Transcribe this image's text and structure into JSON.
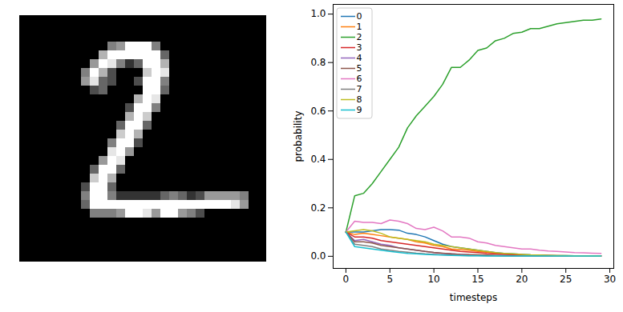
{
  "chart_data": [
    {
      "type": "image",
      "color": "gray",
      "clim": [
        0,
        1
      ],
      "tick_labels": false,
      "cells": [
        [
          0,
          0,
          0,
          0,
          0,
          0,
          0,
          0,
          0,
          0,
          0,
          0,
          0,
          0,
          0,
          0,
          0,
          0,
          0,
          0,
          0,
          0,
          0,
          0,
          0,
          0,
          0,
          0
        ],
        [
          0,
          0,
          0,
          0,
          0,
          0,
          0,
          0,
          0,
          0,
          0,
          0,
          0,
          0,
          0,
          0,
          0,
          0,
          0,
          0,
          0,
          0,
          0,
          0,
          0,
          0,
          0,
          0
        ],
        [
          0,
          0,
          0,
          0,
          0,
          0,
          0,
          0,
          0,
          0,
          0,
          0,
          0,
          0,
          0,
          0,
          0,
          0,
          0,
          0,
          0,
          0,
          0,
          0,
          0,
          0,
          0,
          0
        ],
        [
          0,
          0,
          0,
          0,
          0,
          0,
          0,
          0,
          0,
          0,
          0.5,
          0.6,
          1,
          1,
          1,
          0.5,
          0,
          0,
          0,
          0,
          0,
          0,
          0,
          0,
          0,
          0,
          0,
          0
        ],
        [
          0,
          0,
          0,
          0,
          0,
          0,
          0,
          0,
          0,
          0.7,
          1,
          1,
          1,
          1,
          1,
          1,
          0.4,
          0,
          0,
          0,
          0,
          0,
          0,
          0,
          0,
          0,
          0,
          0
        ],
        [
          0,
          0,
          0,
          0,
          0,
          0,
          0,
          0,
          0.6,
          1,
          0.9,
          0.5,
          0.2,
          0.4,
          1,
          1,
          0.7,
          0,
          0,
          0,
          0,
          0,
          0,
          0,
          0,
          0,
          0,
          0
        ],
        [
          0,
          0,
          0,
          0,
          0,
          0,
          0,
          0.5,
          1,
          0.7,
          0.3,
          0,
          0,
          0,
          0.8,
          1,
          0.9,
          0,
          0,
          0,
          0,
          0,
          0,
          0,
          0,
          0,
          0,
          0
        ],
        [
          0,
          0,
          0,
          0,
          0,
          0,
          0,
          0.6,
          0.9,
          0.4,
          0.3,
          0,
          0,
          0.3,
          1,
          1,
          0.5,
          0,
          0,
          0,
          0,
          0,
          0,
          0,
          0,
          0,
          0,
          0
        ],
        [
          0,
          0,
          0,
          0,
          0,
          0,
          0,
          0,
          0.3,
          0.4,
          0,
          0,
          0,
          0,
          1,
          1,
          0.4,
          0,
          0,
          0,
          0,
          0,
          0,
          0,
          0,
          0,
          0,
          0
        ],
        [
          0,
          0,
          0,
          0,
          0,
          0,
          0,
          0,
          0,
          0,
          0,
          0,
          0,
          0.7,
          1,
          0.9,
          0,
          0,
          0,
          0,
          0,
          0,
          0,
          0,
          0,
          0,
          0,
          0
        ],
        [
          0,
          0,
          0,
          0,
          0,
          0,
          0,
          0,
          0,
          0,
          0,
          0,
          0.3,
          1,
          1,
          0.5,
          0,
          0,
          0,
          0,
          0,
          0,
          0,
          0,
          0,
          0,
          0,
          0
        ],
        [
          0,
          0,
          0,
          0,
          0,
          0,
          0,
          0,
          0,
          0,
          0,
          0,
          0.7,
          1,
          0.8,
          0,
          0,
          0,
          0,
          0,
          0,
          0,
          0,
          0,
          0,
          0,
          0,
          0
        ],
        [
          0,
          0,
          0,
          0,
          0,
          0,
          0,
          0,
          0,
          0,
          0,
          0.4,
          1,
          1,
          0.4,
          0,
          0,
          0,
          0,
          0,
          0,
          0,
          0,
          0,
          0,
          0,
          0,
          0
        ],
        [
          0,
          0,
          0,
          0,
          0,
          0,
          0,
          0,
          0,
          0,
          0,
          0.8,
          1,
          0.7,
          0,
          0,
          0,
          0,
          0,
          0,
          0,
          0,
          0,
          0,
          0,
          0,
          0,
          0
        ],
        [
          0,
          0,
          0,
          0,
          0,
          0,
          0,
          0,
          0,
          0,
          0.5,
          1,
          1,
          0.3,
          0,
          0,
          0,
          0,
          0,
          0,
          0,
          0,
          0,
          0,
          0,
          0,
          0,
          0
        ],
        [
          0,
          0,
          0,
          0,
          0,
          0,
          0,
          0,
          0,
          0,
          0.9,
          1,
          0.6,
          0,
          0,
          0,
          0,
          0,
          0,
          0,
          0,
          0,
          0,
          0,
          0,
          0,
          0,
          0
        ],
        [
          0,
          0,
          0,
          0,
          0,
          0,
          0,
          0,
          0,
          0.6,
          1,
          0.9,
          0,
          0,
          0,
          0,
          0,
          0,
          0,
          0,
          0,
          0,
          0,
          0,
          0,
          0,
          0,
          0
        ],
        [
          0,
          0,
          0,
          0,
          0,
          0,
          0,
          0,
          0.4,
          1,
          1,
          0.4,
          0,
          0,
          0,
          0,
          0,
          0,
          0,
          0,
          0,
          0,
          0,
          0,
          0,
          0,
          0,
          0
        ],
        [
          0,
          0,
          0,
          0,
          0,
          0,
          0,
          0,
          0.8,
          1,
          0.7,
          0,
          0,
          0,
          0,
          0,
          0,
          0,
          0,
          0,
          0,
          0,
          0,
          0,
          0,
          0,
          0,
          0
        ],
        [
          0,
          0,
          0,
          0,
          0,
          0,
          0,
          0.3,
          1,
          1,
          0.4,
          0,
          0,
          0,
          0,
          0,
          0,
          0,
          0,
          0,
          0,
          0,
          0,
          0,
          0,
          0,
          0,
          0
        ],
        [
          0,
          0,
          0,
          0,
          0,
          0,
          0,
          0.5,
          1,
          1,
          0.5,
          0.2,
          0.2,
          0.2,
          0.2,
          0.2,
          0.4,
          0.5,
          0.4,
          0.2,
          0.3,
          0.6,
          0.6,
          0.6,
          0.6,
          0.5,
          0,
          0
        ],
        [
          0,
          0,
          0,
          0,
          0,
          0,
          0,
          0.4,
          1,
          1,
          1,
          1,
          1,
          1,
          1,
          1,
          1,
          1,
          1,
          1,
          1,
          1,
          1,
          1,
          0.9,
          0.6,
          0,
          0
        ],
        [
          0,
          0,
          0,
          0,
          0,
          0,
          0,
          0,
          0.5,
          0.5,
          0.5,
          0.6,
          1,
          1,
          0.9,
          0.6,
          1,
          1,
          0.6,
          0.5,
          0.3,
          0,
          0,
          0,
          0,
          0,
          0,
          0
        ],
        [
          0,
          0,
          0,
          0,
          0,
          0,
          0,
          0,
          0,
          0,
          0,
          0,
          0,
          0,
          0,
          0,
          0,
          0,
          0,
          0,
          0,
          0,
          0,
          0,
          0,
          0,
          0,
          0
        ],
        [
          0,
          0,
          0,
          0,
          0,
          0,
          0,
          0,
          0,
          0,
          0,
          0,
          0,
          0,
          0,
          0,
          0,
          0,
          0,
          0,
          0,
          0,
          0,
          0,
          0,
          0,
          0,
          0
        ],
        [
          0,
          0,
          0,
          0,
          0,
          0,
          0,
          0,
          0,
          0,
          0,
          0,
          0,
          0,
          0,
          0,
          0,
          0,
          0,
          0,
          0,
          0,
          0,
          0,
          0,
          0,
          0,
          0
        ],
        [
          0,
          0,
          0,
          0,
          0,
          0,
          0,
          0,
          0,
          0,
          0,
          0,
          0,
          0,
          0,
          0,
          0,
          0,
          0,
          0,
          0,
          0,
          0,
          0,
          0,
          0,
          0,
          0
        ],
        [
          0,
          0,
          0,
          0,
          0,
          0,
          0,
          0,
          0,
          0,
          0,
          0,
          0,
          0,
          0,
          0,
          0,
          0,
          0,
          0,
          0,
          0,
          0,
          0,
          0,
          0,
          0,
          0
        ]
      ]
    },
    {
      "type": "line",
      "x_label": "timesteps",
      "y_label": "probability",
      "legend": "upper left",
      "xlim": [
        -1.45,
        30.45
      ],
      "xticks": [
        0,
        5,
        10,
        15,
        20,
        25,
        30
      ],
      "ylim": [
        -0.05,
        1.04
      ],
      "yticks": [
        {
          "value": 0,
          "label": "0.0"
        },
        {
          "value": 0.2,
          "label": "0.2"
        },
        {
          "value": 0.4,
          "label": "0.4"
        },
        {
          "value": 0.6,
          "label": "0.6"
        },
        {
          "value": 0.8,
          "label": "0.8"
        },
        {
          "value": 1,
          "label": "1.0"
        }
      ],
      "x": [
        0,
        1,
        2,
        3,
        4,
        5,
        6,
        7,
        8,
        9,
        10,
        11,
        12,
        13,
        14,
        15,
        16,
        17,
        18,
        19,
        20,
        21,
        22,
        23,
        24,
        25,
        26,
        27,
        28,
        29
      ],
      "series": [
        {
          "name": "0",
          "color": "#1f77b4",
          "values": [
            0.1,
            0.1,
            0.1,
            0.105,
            0.11,
            0.11,
            0.108,
            0.095,
            0.09,
            0.08,
            0.065,
            0.05,
            0.04,
            0.035,
            0.03,
            0.025,
            0.02,
            0.015,
            0.012,
            0.01,
            0.008,
            0.006,
            0.005,
            0.004,
            0.003,
            0.003,
            0.002,
            0.002,
            0.002,
            0.002
          ]
        },
        {
          "name": "1",
          "color": "#ff7f0e",
          "values": [
            0.1,
            0.09,
            0.095,
            0.09,
            0.085,
            0.08,
            0.075,
            0.07,
            0.06,
            0.055,
            0.045,
            0.04,
            0.03,
            0.028,
            0.025,
            0.02,
            0.017,
            0.013,
            0.01,
            0.008,
            0.006,
            0.005,
            0.004,
            0.003,
            0.003,
            0.002,
            0.002,
            0.002,
            0.001,
            0.001
          ]
        },
        {
          "name": "2",
          "color": "#2ca02c",
          "values": [
            0.1,
            0.25,
            0.26,
            0.3,
            0.35,
            0.4,
            0.45,
            0.53,
            0.58,
            0.62,
            0.66,
            0.71,
            0.78,
            0.78,
            0.81,
            0.85,
            0.86,
            0.89,
            0.9,
            0.92,
            0.925,
            0.94,
            0.94,
            0.95,
            0.96,
            0.965,
            0.97,
            0.975,
            0.975,
            0.98
          ]
        },
        {
          "name": "3",
          "color": "#d62728",
          "values": [
            0.1,
            0.08,
            0.08,
            0.075,
            0.065,
            0.06,
            0.055,
            0.05,
            0.045,
            0.04,
            0.035,
            0.03,
            0.025,
            0.02,
            0.018,
            0.015,
            0.012,
            0.01,
            0.008,
            0.006,
            0.005,
            0.004,
            0.003,
            0.003,
            0.002,
            0.002,
            0.002,
            0.001,
            0.001,
            0.001
          ]
        },
        {
          "name": "4",
          "color": "#9467bd",
          "values": [
            0.1,
            0.065,
            0.07,
            0.06,
            0.05,
            0.045,
            0.035,
            0.03,
            0.025,
            0.02,
            0.015,
            0.012,
            0.01,
            0.008,
            0.006,
            0.005,
            0.004,
            0.003,
            0.003,
            0.002,
            0.002,
            0.002,
            0.001,
            0.001,
            0.001,
            0.001,
            0.001,
            0.001,
            0.001,
            0.001
          ]
        },
        {
          "name": "5",
          "color": "#8c564b",
          "values": [
            0.1,
            0.06,
            0.06,
            0.055,
            0.045,
            0.04,
            0.035,
            0.03,
            0.025,
            0.02,
            0.016,
            0.013,
            0.01,
            0.008,
            0.007,
            0.006,
            0.005,
            0.004,
            0.003,
            0.002,
            0.002,
            0.002,
            0.001,
            0.001,
            0.001,
            0.001,
            0.001,
            0.001,
            0.001,
            0.001
          ]
        },
        {
          "name": "6",
          "color": "#e377c2",
          "values": [
            0.1,
            0.145,
            0.14,
            0.14,
            0.135,
            0.15,
            0.145,
            0.135,
            0.115,
            0.11,
            0.12,
            0.105,
            0.08,
            0.08,
            0.075,
            0.06,
            0.055,
            0.045,
            0.04,
            0.035,
            0.03,
            0.03,
            0.025,
            0.022,
            0.02,
            0.018,
            0.015,
            0.014,
            0.013,
            0.012
          ]
        },
        {
          "name": "7",
          "color": "#7f7f7f",
          "values": [
            0.1,
            0.05,
            0.045,
            0.04,
            0.03,
            0.025,
            0.02,
            0.017,
            0.013,
            0.01,
            0.008,
            0.006,
            0.005,
            0.004,
            0.003,
            0.003,
            0.002,
            0.002,
            0.001,
            0.001,
            0.001,
            0.001,
            0.001,
            0.001,
            0.001,
            0.001,
            0.001,
            0.001,
            0.001,
            0.001
          ]
        },
        {
          "name": "8",
          "color": "#bcbd22",
          "values": [
            0.1,
            0.105,
            0.11,
            0.105,
            0.095,
            0.08,
            0.075,
            0.07,
            0.065,
            0.06,
            0.05,
            0.045,
            0.04,
            0.035,
            0.03,
            0.025,
            0.02,
            0.015,
            0.012,
            0.01,
            0.008,
            0.006,
            0.005,
            0.004,
            0.003,
            0.003,
            0.002,
            0.002,
            0.002,
            0.001
          ]
        },
        {
          "name": "9",
          "color": "#17becf",
          "values": [
            0.1,
            0.04,
            0.035,
            0.03,
            0.025,
            0.02,
            0.016,
            0.012,
            0.01,
            0.008,
            0.006,
            0.005,
            0.004,
            0.003,
            0.002,
            0.002,
            0.001,
            0.001,
            0.001,
            0.001,
            0.001,
            0.001,
            0.001,
            0.001,
            0.001,
            0.001,
            0.001,
            0.001,
            0.001,
            0.001
          ]
        }
      ]
    }
  ]
}
